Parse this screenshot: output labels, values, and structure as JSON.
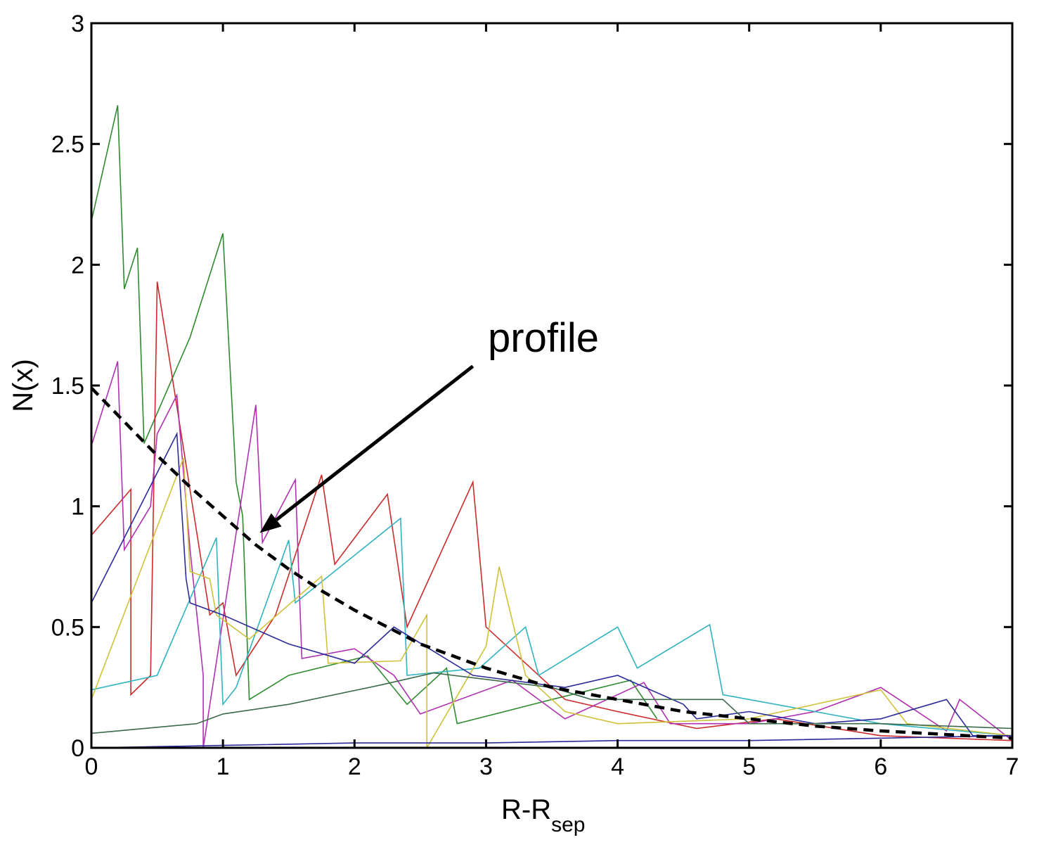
{
  "chart_data": {
    "type": "line",
    "title": "",
    "xlabel": "R-R",
    "xlabel_sub": "sep",
    "ylabel": "N(x)",
    "xlim": [
      0,
      7
    ],
    "ylim": [
      0,
      3
    ],
    "xticks": [
      0,
      1,
      2,
      3,
      4,
      5,
      6,
      7
    ],
    "yticks": [
      0,
      0.5,
      1,
      1.5,
      2,
      2.5,
      3
    ],
    "xtick_labels": [
      "0",
      "1",
      "2",
      "3",
      "4",
      "5",
      "6",
      "7"
    ],
    "ytick_labels": [
      "0",
      "0.5",
      "1",
      "1.5",
      "2",
      "2.5",
      "3"
    ],
    "grid": false,
    "legend": "none",
    "annotation": {
      "text": "profile",
      "arrow_from": [
        2.9,
        1.58
      ],
      "arrow_to": [
        1.28,
        0.89
      ]
    },
    "profile": {
      "style": "dashed",
      "color": "#000000",
      "x": [
        0,
        0.25,
        0.5,
        0.75,
        1.0,
        1.25,
        1.5,
        1.75,
        2.0,
        2.5,
        3.0,
        3.5,
        4.0,
        4.5,
        5.0,
        5.5,
        6.0,
        6.5,
        7.0
      ],
      "y": [
        1.49,
        1.35,
        1.21,
        1.08,
        0.96,
        0.84,
        0.74,
        0.65,
        0.57,
        0.43,
        0.33,
        0.25,
        0.2,
        0.15,
        0.12,
        0.09,
        0.07,
        0.055,
        0.04
      ]
    },
    "series": [
      {
        "color": "#2e8b2e",
        "x": [
          0,
          0.2,
          0.25,
          0.35,
          0.4,
          0.75,
          1.0,
          1.1,
          1.15,
          1.2,
          1.5,
          2.1,
          2.4,
          2.7,
          2.78,
          3.5,
          4.1,
          4.3
        ],
        "y": [
          2.18,
          2.66,
          1.9,
          2.07,
          1.26,
          1.7,
          2.13,
          1.1,
          0.96,
          0.2,
          0.3,
          0.38,
          0.18,
          0.33,
          0.1,
          0.2,
          0.28,
          0.12
        ]
      },
      {
        "color": "#cc2a2a",
        "x": [
          0,
          0.3,
          0.3,
          0.45,
          0.5,
          0.9,
          1.0,
          1.1,
          1.4,
          1.75,
          1.85,
          2.25,
          2.4,
          2.9,
          3.0,
          3.6,
          4.0,
          4.6,
          5.2,
          6.0,
          7.0
        ],
        "y": [
          0.88,
          1.07,
          0.22,
          0.3,
          1.93,
          0.55,
          0.6,
          0.3,
          0.55,
          1.13,
          0.76,
          1.05,
          0.5,
          1.1,
          0.5,
          0.2,
          0.15,
          0.08,
          0.12,
          0.05,
          0.03
        ]
      },
      {
        "color": "#b030b0",
        "x": [
          0,
          0.2,
          0.25,
          0.45,
          0.5,
          0.65,
          0.75,
          0.85,
          0.85,
          1.25,
          1.3,
          1.55,
          1.6,
          2.0,
          2.3,
          2.5,
          3.2,
          3.6,
          4.2,
          4.4,
          5.0,
          5.5,
          6.0,
          6.5,
          6.6,
          7.0
        ],
        "y": [
          1.25,
          1.6,
          0.82,
          1.0,
          1.3,
          1.46,
          0.82,
          0.3,
          0.0,
          1.42,
          0.85,
          1.11,
          0.37,
          0.41,
          0.3,
          0.14,
          0.28,
          0.12,
          0.27,
          0.1,
          0.1,
          0.15,
          0.25,
          0.07,
          0.2,
          0.03
        ]
      },
      {
        "color": "#2fb3c0",
        "x": [
          0,
          0.5,
          0.95,
          1.0,
          1.1,
          1.5,
          1.55,
          2.35,
          2.4,
          2.95,
          3.3,
          3.4,
          4.0,
          4.15,
          4.7,
          4.8,
          5.5,
          6.0,
          7.0
        ],
        "y": [
          0.24,
          0.3,
          0.87,
          0.18,
          0.25,
          0.86,
          0.6,
          0.95,
          0.3,
          0.33,
          0.5,
          0.3,
          0.5,
          0.33,
          0.51,
          0.22,
          0.15,
          0.1,
          0.05
        ]
      },
      {
        "color": "#cfc23a",
        "x": [
          0,
          0.7,
          0.75,
          0.9,
          0.95,
          1.2,
          1.75,
          1.8,
          2.35,
          2.55,
          2.55,
          3.0,
          3.1,
          3.3,
          3.6,
          4.0,
          5.0,
          6.0,
          6.2,
          7.0
        ],
        "y": [
          0.2,
          1.2,
          0.73,
          0.7,
          0.55,
          0.45,
          0.71,
          0.35,
          0.36,
          0.55,
          0.0,
          0.42,
          0.75,
          0.3,
          0.15,
          0.1,
          0.12,
          0.24,
          0.1,
          0.05
        ]
      },
      {
        "color": "#2a2a9a",
        "x": [
          0,
          0.65,
          0.72,
          0.75,
          1.0,
          1.5,
          2.0,
          2.3,
          2.9,
          3.6,
          4.0,
          4.5,
          4.6,
          5.0,
          5.5,
          6.0,
          6.5,
          6.7,
          7.0
        ],
        "y": [
          0.6,
          1.3,
          0.7,
          0.6,
          0.55,
          0.43,
          0.35,
          0.5,
          0.3,
          0.25,
          0.3,
          0.18,
          0.12,
          0.15,
          0.1,
          0.12,
          0.2,
          0.05,
          0.05
        ]
      },
      {
        "color": "#3a6a4a",
        "x": [
          0,
          0.8,
          1.0,
          1.5,
          2.2,
          2.6,
          3.5,
          3.8,
          4.8,
          5.0,
          6.0,
          7.0
        ],
        "y": [
          0.06,
          0.1,
          0.14,
          0.18,
          0.26,
          0.31,
          0.25,
          0.2,
          0.2,
          0.1,
          0.1,
          0.08
        ]
      },
      {
        "color": "#2a2a9a",
        "x": [
          0,
          1.0,
          2.0,
          3.0,
          4.0,
          5.0,
          6.0,
          7.0
        ],
        "y": [
          0.0,
          0.01,
          0.02,
          0.02,
          0.03,
          0.03,
          0.04,
          0.05
        ]
      }
    ]
  }
}
